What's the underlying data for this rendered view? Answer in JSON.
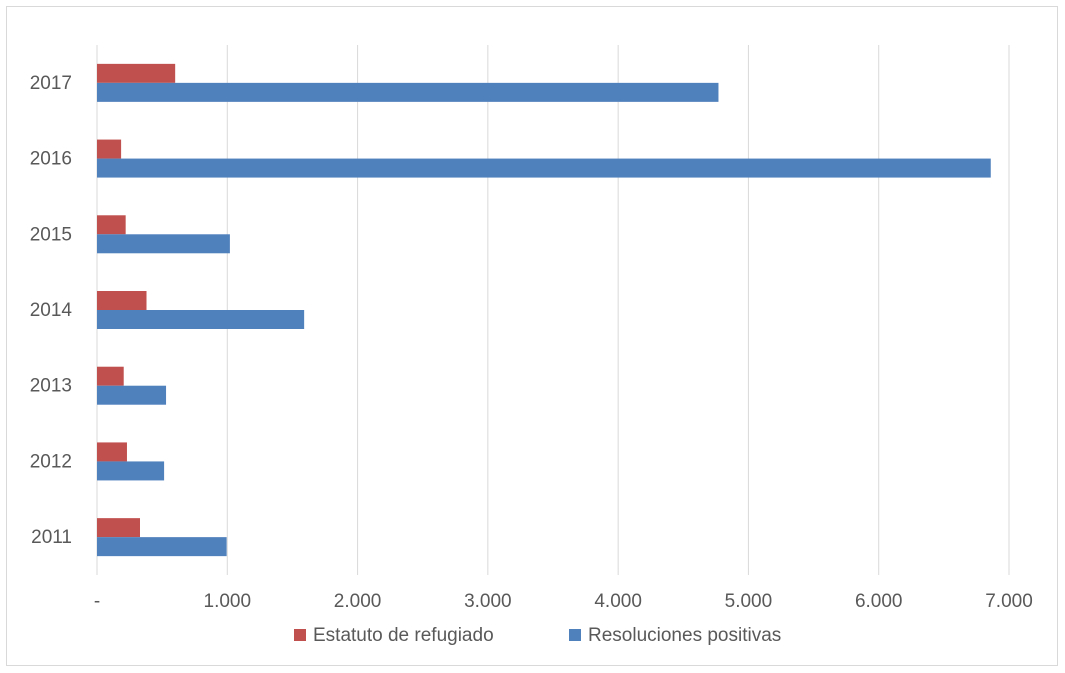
{
  "chart_data": {
    "type": "bar",
    "orientation": "horizontal",
    "categories": [
      "2011",
      "2012",
      "2013",
      "2014",
      "2015",
      "2016",
      "2017"
    ],
    "series": [
      {
        "name": "Estatuto de refugiado",
        "color": "#c0504d",
        "values": [
          330,
          230,
          205,
          380,
          220,
          185,
          600
        ]
      },
      {
        "name": "Resoluciones positivas",
        "color": "#4f81bd",
        "values": [
          995,
          515,
          530,
          1590,
          1020,
          6860,
          4770
        ]
      }
    ],
    "x_ticks": [
      0,
      1000,
      2000,
      3000,
      4000,
      5000,
      6000,
      7000
    ],
    "x_tick_labels": [
      "-",
      "1.000",
      "2.000",
      "3.000",
      "4.000",
      "5.000",
      "6.000",
      "7.000"
    ],
    "xlim": [
      0,
      7000
    ],
    "grid": "vertical",
    "legend": "bottom",
    "title": "",
    "xlabel": "",
    "ylabel": ""
  }
}
